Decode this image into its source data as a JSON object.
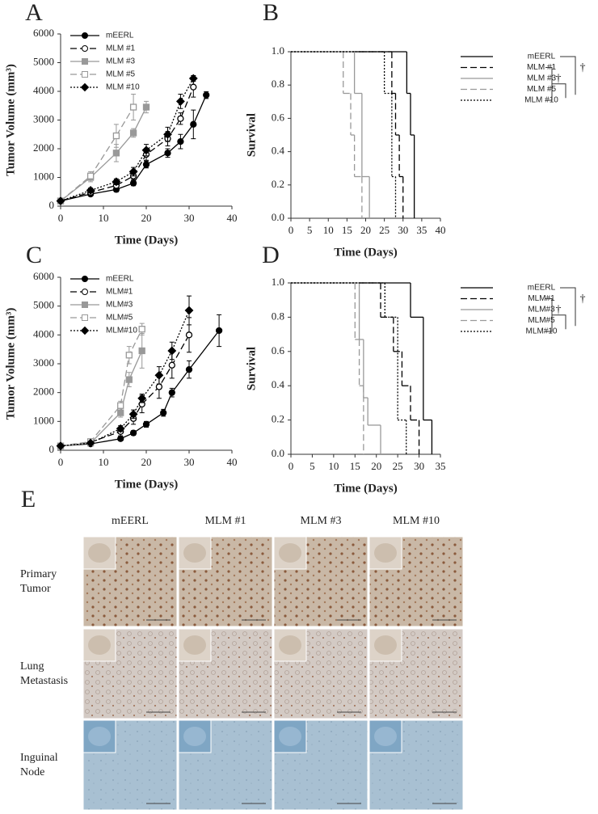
{
  "chart_data": [
    {
      "panel": "A",
      "type": "line",
      "xlabel": "Time (Days)",
      "ylabel": "Tumor Volume (mm³)",
      "xlim": [
        0,
        40
      ],
      "xticks": [
        0,
        10,
        20,
        30,
        40
      ],
      "ylim": [
        0,
        6000
      ],
      "yticks": [
        0,
        1000,
        2000,
        3000,
        4000,
        5000,
        6000
      ],
      "legend": "upper left",
      "series": [
        {
          "name": "mEERL",
          "color": "#000000",
          "dash": "solid",
          "marker": "circle",
          "filled": true,
          "x": [
            0,
            7,
            13,
            17,
            20,
            25,
            28,
            31,
            34
          ],
          "values": [
            180,
            420,
            580,
            800,
            1450,
            1850,
            2250,
            2850,
            3870
          ],
          "errors": [
            30,
            60,
            80,
            90,
            120,
            150,
            250,
            500,
            120
          ]
        },
        {
          "name": "MLM #1",
          "color": "#000000",
          "dash": "dashed",
          "marker": "circle",
          "filled": false,
          "x": [
            0,
            7,
            13,
            17,
            20,
            25,
            28,
            31
          ],
          "values": [
            180,
            480,
            720,
            1050,
            1800,
            2350,
            3050,
            4150
          ],
          "errors": [
            30,
            60,
            100,
            120,
            200,
            250,
            200,
            350
          ]
        },
        {
          "name": "MLM #3",
          "color": "#999999",
          "dash": "solid",
          "marker": "square",
          "filled": true,
          "x": [
            0,
            7,
            13,
            17,
            20
          ],
          "values": [
            180,
            1000,
            1850,
            2550,
            3450
          ],
          "errors": [
            30,
            150,
            300,
            150,
            200
          ]
        },
        {
          "name": "MLM #5",
          "color": "#999999",
          "dash": "dashed",
          "marker": "square",
          "filled": false,
          "x": [
            0,
            7,
            13,
            17
          ],
          "values": [
            180,
            1050,
            2450,
            3450
          ],
          "errors": [
            30,
            150,
            400,
            450
          ]
        },
        {
          "name": "MLM #10",
          "color": "#000000",
          "dash": "dotted",
          "marker": "diamond",
          "filled": true,
          "x": [
            0,
            7,
            13,
            17,
            20,
            25,
            28,
            31
          ],
          "values": [
            180,
            550,
            850,
            1200,
            1950,
            2500,
            3650,
            4450
          ],
          "errors": [
            30,
            80,
            100,
            150,
            200,
            250,
            250,
            100
          ]
        }
      ]
    },
    {
      "panel": "B",
      "type": "survival",
      "xlabel": "Time (Days)",
      "ylabel": "Survival",
      "xlim": [
        0,
        40
      ],
      "xticks": [
        0,
        5,
        10,
        15,
        20,
        25,
        30,
        35,
        40
      ],
      "ylim": [
        0,
        1
      ],
      "yticks": [
        {
          "value": 0,
          "label": "0.0"
        },
        0.2,
        0.4,
        0.6,
        0.8,
        {
          "value": 1,
          "label": "1.0"
        }
      ],
      "legend": "right",
      "significance": [
        "†",
        "†"
      ],
      "series": [
        {
          "name": "mEERL",
          "color": "#000000",
          "dash": "solid",
          "x": [
            0,
            31,
            32,
            33
          ],
          "values": [
            1,
            0.75,
            0.5,
            0
          ]
        },
        {
          "name": "MLM #1",
          "color": "#000000",
          "dash": "dashed",
          "x": [
            0,
            27,
            28,
            29,
            30
          ],
          "values": [
            1,
            0.75,
            0.5,
            0.25,
            0
          ]
        },
        {
          "name": "MLM #3",
          "color": "#999999",
          "dash": "solid",
          "x": [
            0,
            17,
            19,
            21
          ],
          "values": [
            1,
            0.75,
            0.25,
            0
          ]
        },
        {
          "name": "MLM #5",
          "color": "#999999",
          "dash": "dashed",
          "x": [
            0,
            14,
            16,
            17,
            19
          ],
          "values": [
            1,
            0.75,
            0.5,
            0.25,
            0
          ]
        },
        {
          "name": "MLM #10",
          "color": "#000000",
          "dash": "dotted",
          "x": [
            0,
            25,
            27,
            28
          ],
          "values": [
            1,
            0.75,
            0.25,
            0
          ]
        }
      ]
    },
    {
      "panel": "C",
      "type": "line",
      "xlabel": "Time (Days)",
      "ylabel": "Tumor Volume (mm³)",
      "xlim": [
        0,
        40
      ],
      "xticks": [
        0,
        10,
        20,
        30,
        40
      ],
      "ylim": [
        0,
        6000
      ],
      "yticks": [
        0,
        1000,
        2000,
        3000,
        4000,
        5000,
        6000
      ],
      "legend": "upper left",
      "series": [
        {
          "name": "mEERL",
          "color": "#000000",
          "dash": "solid",
          "marker": "circle",
          "filled": true,
          "x": [
            0,
            7,
            14,
            17,
            20,
            24,
            26,
            30,
            37
          ],
          "values": [
            150,
            220,
            400,
            600,
            900,
            1300,
            2000,
            2800,
            4150
          ],
          "errors": [
            30,
            40,
            60,
            80,
            100,
            120,
            150,
            300,
            550
          ]
        },
        {
          "name": "MLM#1",
          "color": "#000000",
          "dash": "dashed",
          "marker": "circle",
          "filled": false,
          "x": [
            0,
            7,
            14,
            17,
            19,
            23,
            26,
            30
          ],
          "values": [
            150,
            280,
            650,
            1100,
            1600,
            2200,
            2950,
            4000
          ],
          "errors": [
            30,
            50,
            150,
            200,
            300,
            400,
            450,
            600
          ]
        },
        {
          "name": "MLM#3",
          "color": "#999999",
          "dash": "solid",
          "marker": "square",
          "filled": true,
          "x": [
            0,
            7,
            14,
            16,
            19
          ],
          "values": [
            150,
            250,
            1300,
            2450,
            3450
          ],
          "errors": [
            30,
            40,
            150,
            250,
            600
          ]
        },
        {
          "name": "MLM#5",
          "color": "#999999",
          "dash": "dashed",
          "marker": "square",
          "filled": false,
          "x": [
            0,
            7,
            14,
            16,
            19
          ],
          "values": [
            150,
            300,
            1550,
            3300,
            4200
          ],
          "errors": [
            30,
            50,
            150,
            300,
            200
          ]
        },
        {
          "name": "MLM#10",
          "color": "#000000",
          "dash": "dotted",
          "marker": "diamond",
          "filled": true,
          "x": [
            0,
            7,
            14,
            17,
            19,
            23,
            26,
            30
          ],
          "values": [
            150,
            250,
            750,
            1250,
            1800,
            2600,
            3450,
            4850
          ],
          "errors": [
            30,
            40,
            100,
            150,
            150,
            300,
            300,
            500
          ]
        }
      ]
    },
    {
      "panel": "D",
      "type": "survival",
      "xlabel": "Time (Days)",
      "ylabel": "Survival",
      "xlim": [
        0,
        35
      ],
      "xticks": [
        0,
        5,
        10,
        15,
        20,
        25,
        30,
        35
      ],
      "ylim": [
        0,
        1
      ],
      "yticks": [
        {
          "value": 0,
          "label": "0.0"
        },
        0.2,
        0.4,
        0.6,
        0.8,
        {
          "value": 1,
          "label": "1.0"
        }
      ],
      "legend": "right",
      "significance": [
        "†",
        "†"
      ],
      "series": [
        {
          "name": "mEERL",
          "color": "#000000",
          "dash": "solid",
          "x": [
            0,
            28,
            31,
            33
          ],
          "values": [
            1,
            0.8,
            0.2,
            0
          ]
        },
        {
          "name": "MLM#1",
          "color": "#000000",
          "dash": "dashed",
          "x": [
            0,
            21,
            24,
            26,
            28,
            30
          ],
          "values": [
            1,
            0.8,
            0.6,
            0.4,
            0.2,
            0
          ]
        },
        {
          "name": "MLM#3",
          "color": "#999999",
          "dash": "solid",
          "x": [
            0,
            16,
            17,
            18,
            21
          ],
          "values": [
            1,
            0.67,
            0.33,
            0.17,
            0
          ]
        },
        {
          "name": "MLM#5",
          "color": "#999999",
          "dash": "dashed",
          "x": [
            0,
            15,
            16,
            17
          ],
          "values": [
            1,
            0.67,
            0.4,
            0
          ]
        },
        {
          "name": "MLM#10",
          "color": "#000000",
          "dash": "dotted",
          "x": [
            0,
            22,
            25,
            27
          ],
          "values": [
            1,
            0.8,
            0.2,
            0
          ]
        }
      ]
    }
  ],
  "panel_e": {
    "label": "E",
    "columns": [
      "mEERL",
      "MLM #1",
      "MLM #3",
      "MLM #10"
    ],
    "rows": [
      [
        "Primary",
        "Tumor"
      ],
      [
        "Lung",
        "Metastasis"
      ],
      [
        "Inguinal",
        "Node"
      ]
    ]
  }
}
